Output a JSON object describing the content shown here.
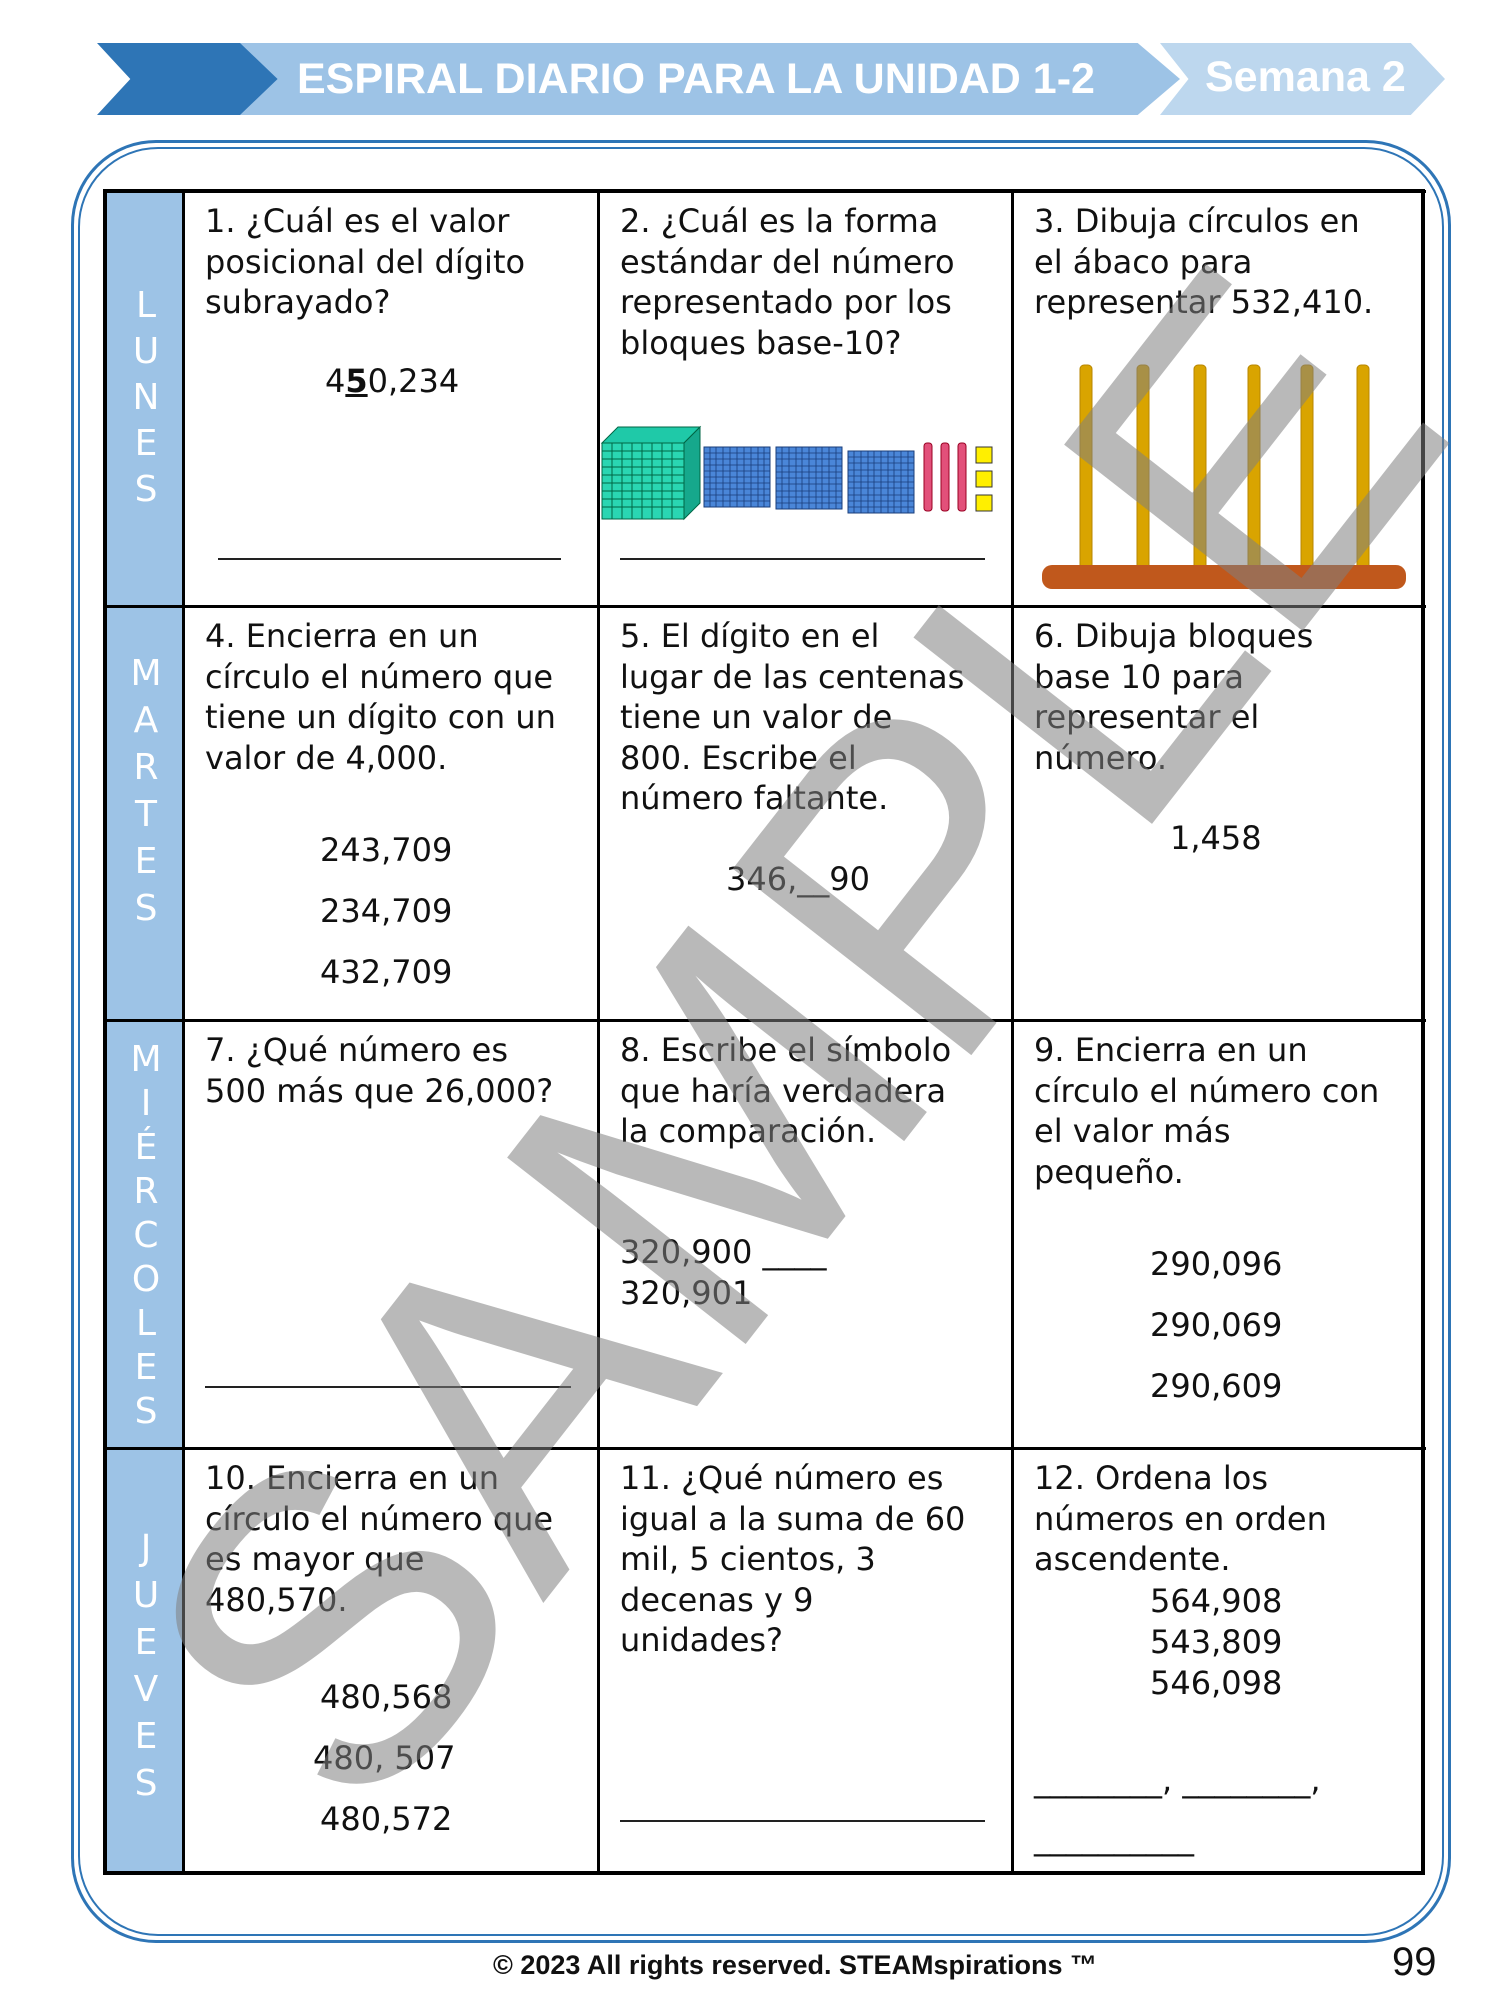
{
  "header": {
    "title": "ESPIRAL DIARIO PARA LA UNIDAD 1-2",
    "week": "Semana 2"
  },
  "days": [
    {
      "letters": [
        "L",
        "U",
        "N",
        "E",
        "S"
      ]
    },
    {
      "letters": [
        "M",
        "A",
        "R",
        "T",
        "E",
        "S"
      ]
    },
    {
      "letters": [
        "M",
        "I",
        "É",
        "R",
        "C",
        "O",
        "L",
        "E",
        "S"
      ]
    },
    {
      "letters": [
        "J",
        "U",
        "E",
        "V",
        "E",
        "S"
      ]
    }
  ],
  "problems": [
    {
      "question": "1. ¿Cuál es el valor\nposicional del dígito\nsubrayado?",
      "number_pre": "4",
      "number_underlined": "5",
      "number_post": "0,234"
    },
    {
      "question": "2. ¿Cuál es la forma\nestándar del número\nrepresentado por los\nbloques base-10?",
      "blocks": {
        "thousands": 1,
        "hundreds": 3,
        "tens": 3,
        "ones": 3
      }
    },
    {
      "question": "3. Dibuja círculos en\nel ábaco para\nrepresentar 532,410.",
      "abacus_rods": 6
    },
    {
      "question": "4. Encierra en un\ncírculo el número que\ntiene un dígito con un\nvalor de 4,000.",
      "options": [
        "243,709",
        "234,709",
        "432,709"
      ]
    },
    {
      "question": "5. El dígito en el\nlugar de las centenas\ntiene un valor de\n800. Escribe el\nnúmero faltante.",
      "number": "346,__90"
    },
    {
      "question": "6. Dibuja bloques\nbase 10 para\nrepresentar el\nnúmero.",
      "number": "1,458"
    },
    {
      "question": "7. ¿Qué número es\n500 más que 26,000?"
    },
    {
      "question": "8. Escribe el símbolo\nque haría verdadera\nla comparación.",
      "line1": "320,900 ____",
      "line2": "320,901"
    },
    {
      "question": "9. Encierra en un\ncírculo el número con\nel valor más\npequeño.",
      "options": [
        "290,096",
        "290,069",
        "290,609"
      ]
    },
    {
      "question": "10. Encierra en un\ncírculo el número que\nes mayor que\n480,570.",
      "options": [
        "480,568",
        "480, 507",
        "480,572"
      ]
    },
    {
      "question": "11. ¿Qué número es\nigual a la suma de 60\nmil, 5 cientos, 3\ndecenas y 9\nunidades?"
    },
    {
      "question": "12. Ordena los\nnúmeros en orden\nascendente.",
      "options": [
        "564,908",
        "543,809",
        "546,098"
      ],
      "blank1": "________, ________,",
      "blank2": "__________"
    }
  ],
  "footer": {
    "copyright": "© 2023 All rights reserved. STEAMspirations ™",
    "page": "99"
  },
  "watermark": "SAMPLE",
  "colors": {
    "dark_blue": "#2e75b6",
    "light_blue": "#9dc3e6",
    "lighter_blue": "#bdd7ee"
  }
}
